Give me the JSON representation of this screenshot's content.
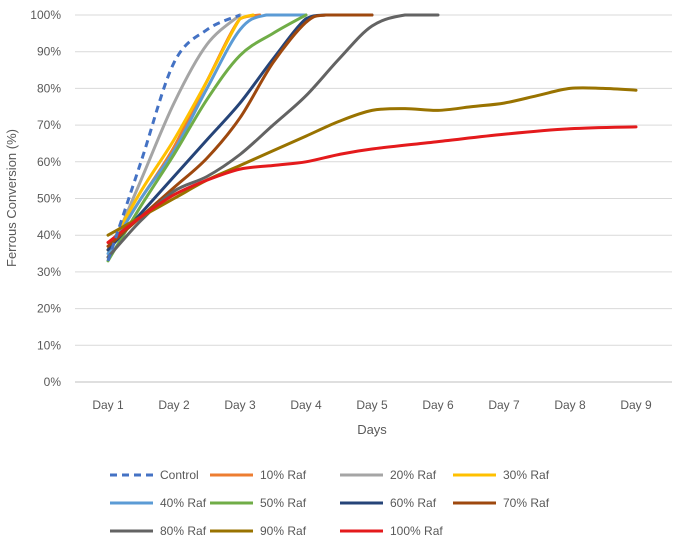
{
  "chart_data": {
    "type": "line",
    "title": "",
    "xlabel": "Days",
    "ylabel": "Ferrous Conversion (%)",
    "categories": [
      "Day 1",
      "Day 2",
      "Day 3",
      "Day 4",
      "Day 5",
      "Day 6",
      "Day 7",
      "Day 8",
      "Day 9"
    ],
    "y_ticks": [
      "0%",
      "10%",
      "20%",
      "30%",
      "40%",
      "50%",
      "60%",
      "70%",
      "80%",
      "90%",
      "100%"
    ],
    "ylim": [
      0,
      100
    ],
    "grid": true,
    "legend_position": "bottom",
    "series": [
      {
        "name": "Control",
        "color": "#4472C4",
        "dashed": true,
        "points": [
          [
            1,
            33
          ],
          [
            1.5,
            60
          ],
          [
            2,
            87
          ],
          [
            2.5,
            96
          ],
          [
            3,
            100
          ]
        ]
      },
      {
        "name": "10% Raf",
        "color": "#ED7D31",
        "dashed": false,
        "points": [
          [
            1,
            36
          ],
          [
            1.5,
            50
          ],
          [
            2,
            64
          ],
          [
            2.5,
            82
          ],
          [
            3,
            99
          ],
          [
            3.3,
            100
          ]
        ]
      },
      {
        "name": "20% Raf",
        "color": "#A5A5A5",
        "dashed": false,
        "points": [
          [
            1,
            34
          ],
          [
            1.5,
            55
          ],
          [
            2,
            76
          ],
          [
            2.5,
            92
          ],
          [
            3,
            100
          ]
        ]
      },
      {
        "name": "30% Raf",
        "color": "#FFC000",
        "dashed": false,
        "points": [
          [
            1,
            36
          ],
          [
            1.5,
            52
          ],
          [
            2,
            66
          ],
          [
            2.5,
            82
          ],
          [
            3,
            99
          ],
          [
            3.2,
            100
          ]
        ]
      },
      {
        "name": "40% Raf",
        "color": "#5B9BD5",
        "dashed": false,
        "points": [
          [
            1,
            35
          ],
          [
            1.5,
            50
          ],
          [
            2,
            63
          ],
          [
            2.5,
            80
          ],
          [
            3,
            96
          ],
          [
            3.4,
            100
          ],
          [
            4,
            100
          ]
        ]
      },
      {
        "name": "50% Raf",
        "color": "#70AD47",
        "dashed": false,
        "points": [
          [
            1,
            33
          ],
          [
            1.5,
            48
          ],
          [
            2,
            62
          ],
          [
            2.5,
            77
          ],
          [
            3,
            89
          ],
          [
            3.5,
            95
          ],
          [
            4,
            100
          ]
        ]
      },
      {
        "name": "60% Raf",
        "color": "#264478",
        "dashed": false,
        "points": [
          [
            1,
            36
          ],
          [
            1.5,
            46
          ],
          [
            2,
            56
          ],
          [
            2.5,
            66
          ],
          [
            3,
            76
          ],
          [
            3.5,
            88
          ],
          [
            4,
            99
          ],
          [
            4.3,
            100
          ],
          [
            5,
            100
          ]
        ]
      },
      {
        "name": "70% Raf",
        "color": "#9E480E",
        "dashed": false,
        "points": [
          [
            1,
            37
          ],
          [
            1.5,
            45
          ],
          [
            2,
            53
          ],
          [
            2.5,
            61
          ],
          [
            3,
            72
          ],
          [
            3.5,
            87
          ],
          [
            4,
            98
          ],
          [
            4.3,
            100
          ],
          [
            5,
            100
          ]
        ]
      },
      {
        "name": "80% Raf",
        "color": "#636363",
        "dashed": false,
        "points": [
          [
            1,
            34
          ],
          [
            1.5,
            44
          ],
          [
            2,
            52
          ],
          [
            2.5,
            56
          ],
          [
            3,
            62
          ],
          [
            3.5,
            70
          ],
          [
            4,
            78
          ],
          [
            4.5,
            88
          ],
          [
            5,
            97
          ],
          [
            5.5,
            100
          ],
          [
            6,
            100
          ]
        ]
      },
      {
        "name": "90% Raf",
        "color": "#997300",
        "dashed": false,
        "points": [
          [
            1,
            40
          ],
          [
            1.5,
            45
          ],
          [
            2,
            50
          ],
          [
            2.5,
            55
          ],
          [
            3,
            59
          ],
          [
            3.5,
            63
          ],
          [
            4,
            67
          ],
          [
            4.5,
            71
          ],
          [
            5,
            74
          ],
          [
            5.5,
            74.5
          ],
          [
            6,
            74
          ],
          [
            6.5,
            75
          ],
          [
            7,
            76
          ],
          [
            7.5,
            78
          ],
          [
            8,
            80
          ],
          [
            8.5,
            80
          ],
          [
            9,
            79.5
          ]
        ]
      },
      {
        "name": "100% Raf",
        "color": "#E41A1C",
        "dashed": false,
        "points": [
          [
            1,
            38
          ],
          [
            1.5,
            45
          ],
          [
            2,
            51
          ],
          [
            2.5,
            55
          ],
          [
            3,
            58
          ],
          [
            3.5,
            59
          ],
          [
            4,
            60
          ],
          [
            4.5,
            62
          ],
          [
            5,
            63.5
          ],
          [
            6,
            65.5
          ],
          [
            7,
            67.5
          ],
          [
            8,
            69
          ],
          [
            9,
            69.5
          ]
        ]
      }
    ]
  }
}
